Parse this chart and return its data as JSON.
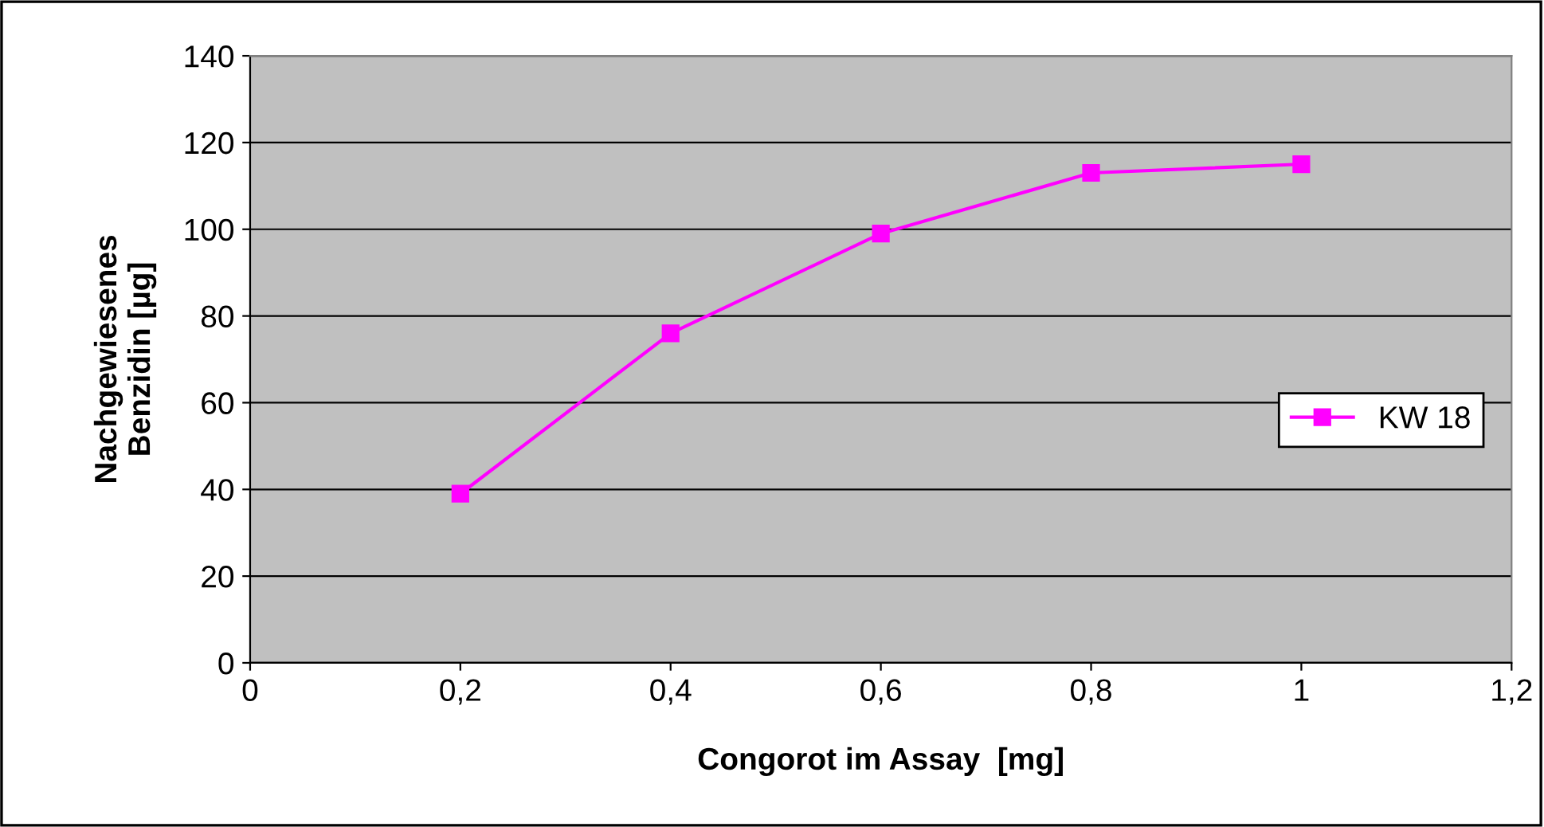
{
  "chart_data": {
    "type": "line",
    "xlabel": "Congorot im Assay  [mg]",
    "ylabel": "Nachgewiesenes\nBenzidin [µg]",
    "x": [
      0.2,
      0.4,
      0.6,
      0.8,
      1.0
    ],
    "series": [
      {
        "name": "KW 18",
        "color": "#ff00ff",
        "values": [
          39,
          76,
          99,
          113,
          115
        ]
      }
    ],
    "xlim": [
      0,
      1.2
    ],
    "xticks": [
      0,
      {
        "value": 0.2,
        "label": "0,2"
      },
      {
        "value": 0.4,
        "label": "0,4"
      },
      {
        "value": 0.6,
        "label": "0,6"
      },
      {
        "value": 0.8,
        "label": "0,8"
      },
      1,
      {
        "value": 1.2,
        "label": "1,2"
      }
    ],
    "ylim": [
      0,
      140
    ],
    "yticks": [
      0,
      20,
      40,
      60,
      80,
      100,
      120,
      140
    ],
    "grid": "y",
    "legend": "right",
    "marker": "square",
    "line_style": "solid"
  }
}
